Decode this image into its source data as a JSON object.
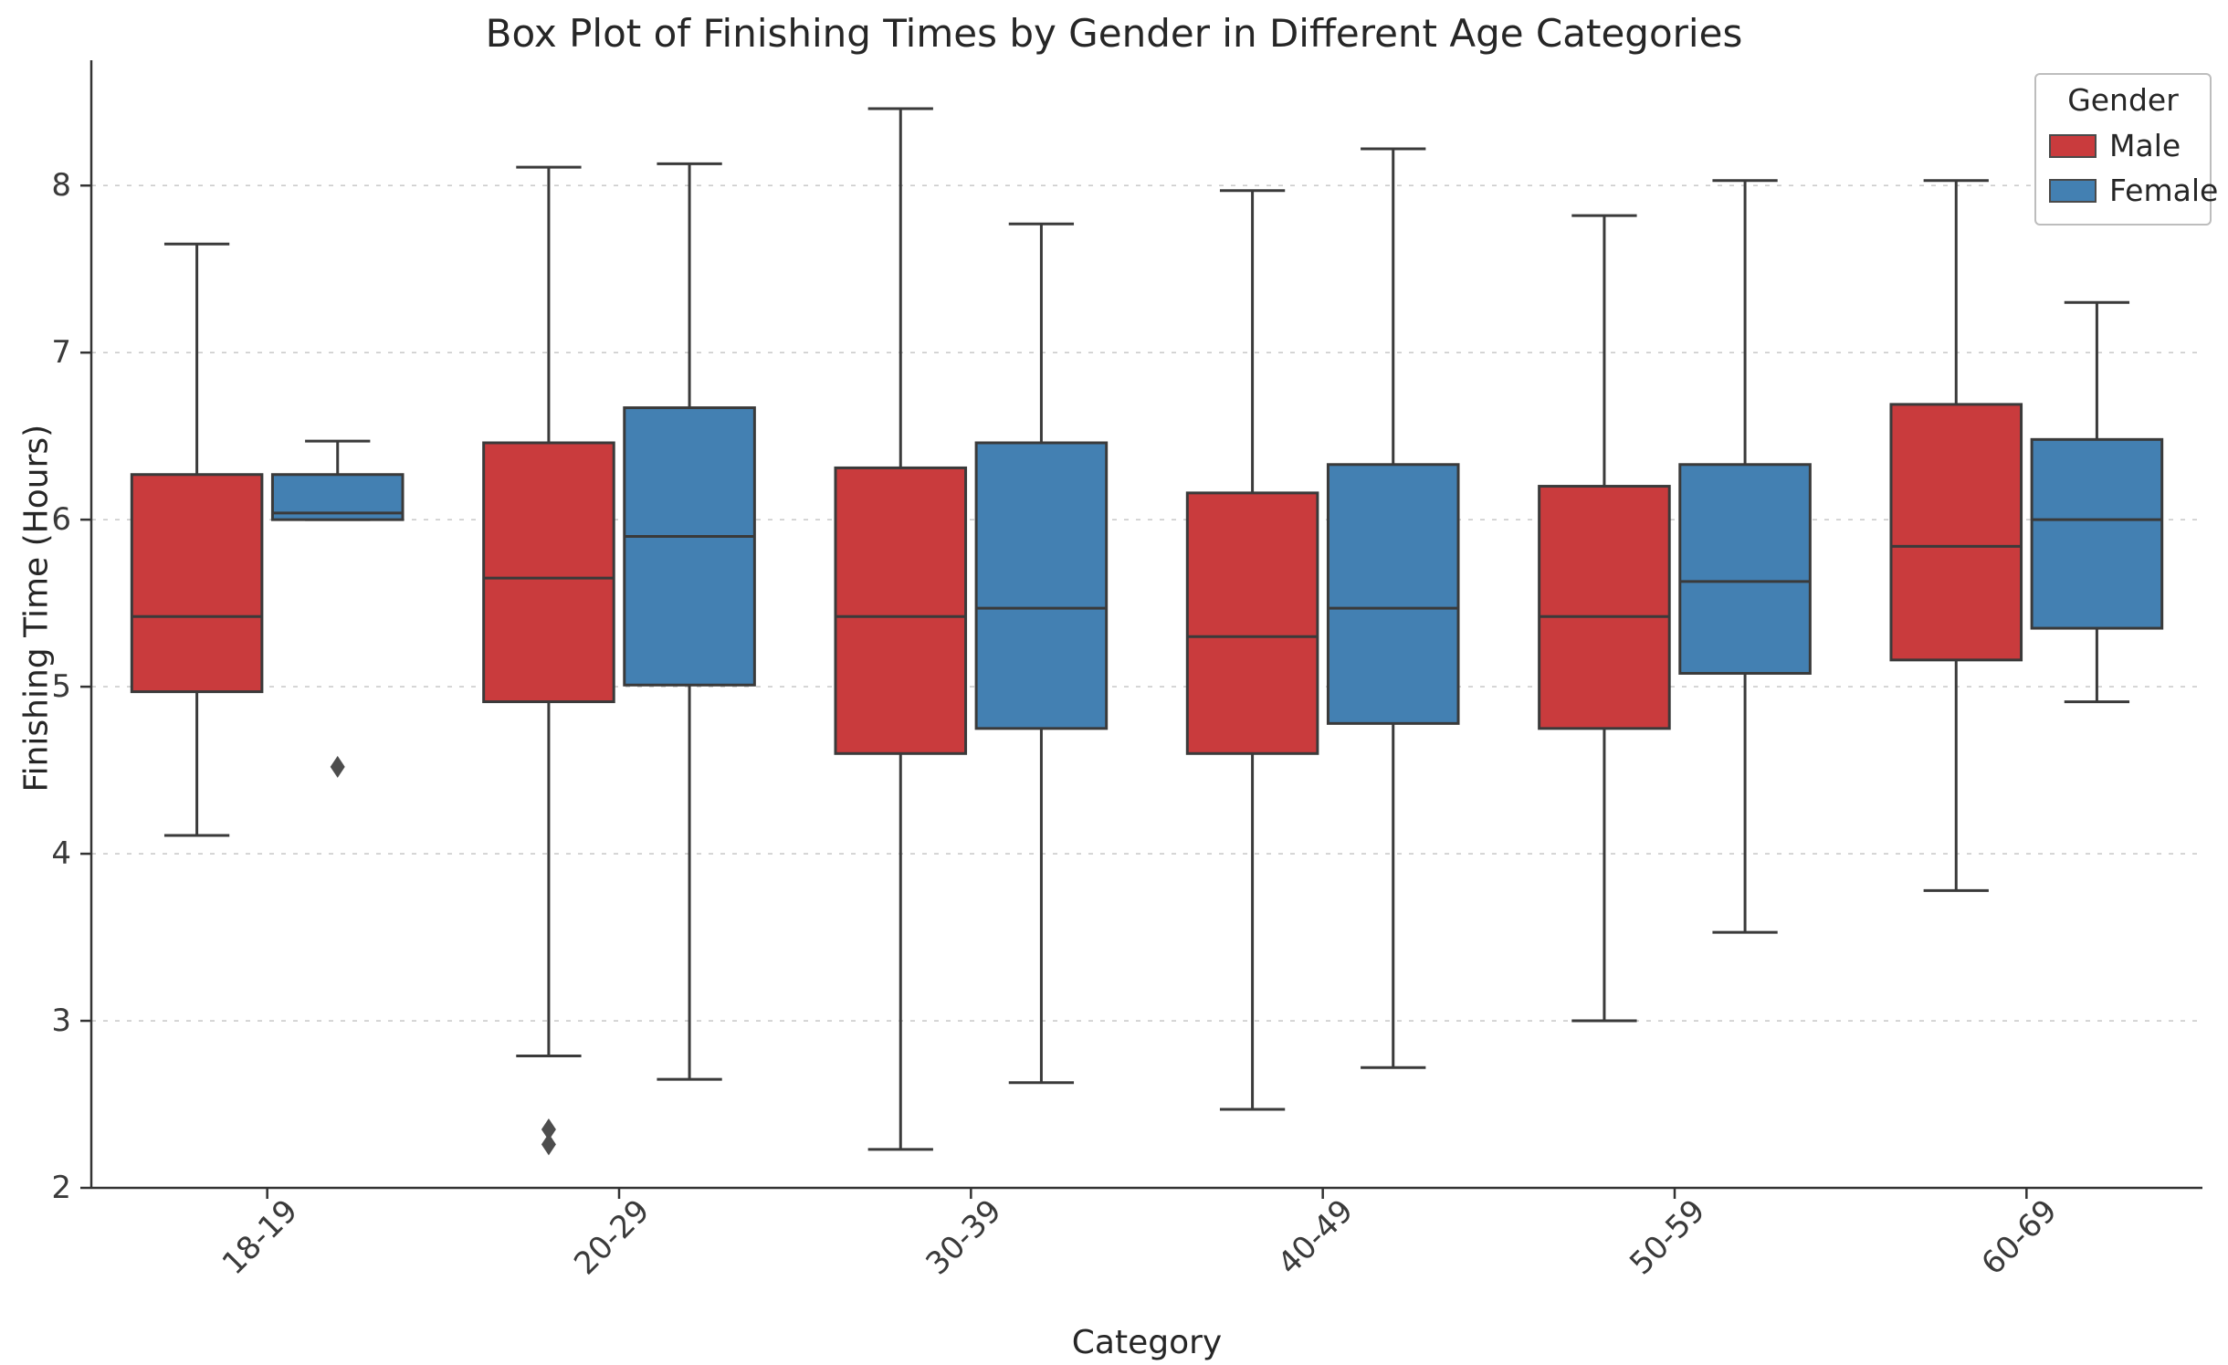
{
  "chart_data": {
    "type": "boxplot",
    "title": "Box Plot of Finishing Times by Gender in Different Age Categories",
    "xlabel": "Category",
    "ylabel": "Finishing Time (Hours)",
    "ylim": [
      2,
      8.75
    ],
    "yticks": [
      2,
      3,
      4,
      5,
      6,
      7,
      8
    ],
    "grid": "horizontal-dashed",
    "categories": [
      "18-19",
      "20-29",
      "30-39",
      "40-49",
      "50-59",
      "60-69"
    ],
    "legend": {
      "title": "Gender",
      "position": "upper right"
    },
    "colors": {
      "male": "#c93b3d",
      "female": "#4380b2",
      "box_edge": "#3a3a3a",
      "grid": "#cccccc",
      "outlier": "#4d4d4d"
    },
    "series": [
      {
        "name": "Male",
        "color": "#c93b3d",
        "boxes": [
          {
            "whislo": 4.11,
            "q1": 4.97,
            "med": 5.42,
            "q3": 6.27,
            "whishi": 7.65,
            "outliers": []
          },
          {
            "whislo": 2.79,
            "q1": 4.91,
            "med": 5.65,
            "q3": 6.46,
            "whishi": 8.11,
            "outliers": [
              2.26,
              2.35
            ]
          },
          {
            "whislo": 2.23,
            "q1": 4.6,
            "med": 5.42,
            "q3": 6.31,
            "whishi": 8.46,
            "outliers": []
          },
          {
            "whislo": 2.47,
            "q1": 4.6,
            "med": 5.3,
            "q3": 6.16,
            "whishi": 7.97,
            "outliers": []
          },
          {
            "whislo": 3.0,
            "q1": 4.75,
            "med": 5.42,
            "q3": 6.2,
            "whishi": 7.82,
            "outliers": []
          },
          {
            "whislo": 3.78,
            "q1": 5.16,
            "med": 5.84,
            "q3": 6.69,
            "whishi": 8.03,
            "outliers": []
          }
        ]
      },
      {
        "name": "Female",
        "color": "#4380b2",
        "boxes": [
          {
            "whislo": 6.0,
            "q1": 6.0,
            "med": 6.04,
            "q3": 6.27,
            "whishi": 6.47,
            "outliers": [
              4.52
            ]
          },
          {
            "whislo": 2.65,
            "q1": 5.01,
            "med": 5.9,
            "q3": 6.67,
            "whishi": 8.13,
            "outliers": []
          },
          {
            "whislo": 2.63,
            "q1": 4.75,
            "med": 5.47,
            "q3": 6.46,
            "whishi": 7.77,
            "outliers": []
          },
          {
            "whislo": 2.72,
            "q1": 4.78,
            "med": 5.47,
            "q3": 6.33,
            "whishi": 8.22,
            "outliers": []
          },
          {
            "whislo": 3.53,
            "q1": 5.08,
            "med": 5.63,
            "q3": 6.33,
            "whishi": 8.03,
            "outliers": []
          },
          {
            "whislo": 4.91,
            "q1": 5.35,
            "med": 6.0,
            "q3": 6.48,
            "whishi": 7.3,
            "outliers": []
          }
        ]
      }
    ]
  }
}
